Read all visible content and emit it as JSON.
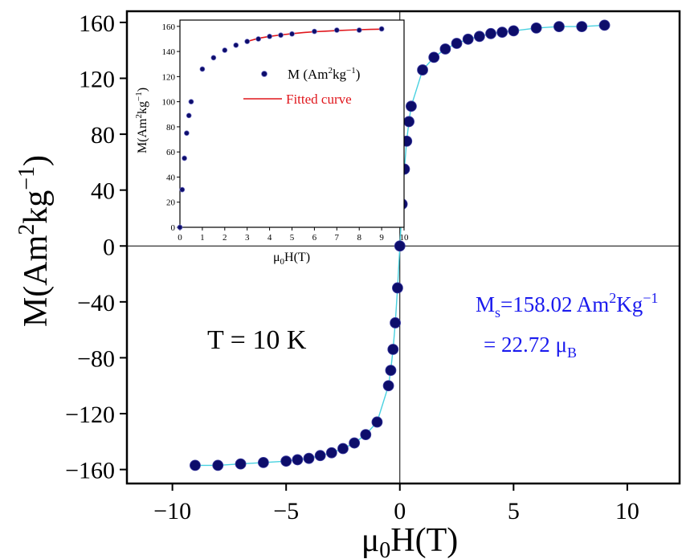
{
  "chart_data": [
    {
      "type": "scatter",
      "title": "",
      "xlabel_base": "μ",
      "xlabel_sub": "0",
      "xlabel_rest": "H(T)",
      "ylabel_main": "M(Am",
      "ylabel_sup1": "2",
      "ylabel_mid": "kg",
      "ylabel_sup2": "−1",
      "ylabel_end": ")",
      "xlim": [
        -12,
        12.3
      ],
      "ylim": [
        -170,
        168
      ],
      "xticks": [
        -10,
        -5,
        0,
        5,
        10
      ],
      "xtick_labels": [
        "−10",
        "−5",
        "0",
        "5",
        "10"
      ],
      "yticks": [
        -160,
        -120,
        -80,
        -40,
        0,
        40,
        80,
        120,
        160
      ],
      "ytick_labels": [
        "−160",
        "−120",
        "−80",
        "−40",
        "0",
        "40",
        "80",
        "120",
        "160"
      ],
      "marker_color": "#0d0d6b",
      "line_color": "#48d1e0",
      "series": [
        {
          "name": "",
          "x": [
            -9,
            -8,
            -7,
            -6,
            -5,
            -4.5,
            -4,
            -3.5,
            -3,
            -2.5,
            -2,
            -1.5,
            -1,
            -0.5,
            -0.4,
            -0.3,
            -0.2,
            -0.1,
            0,
            0.1,
            0.2,
            0.3,
            0.4,
            0.5,
            1,
            1.5,
            2,
            2.5,
            3,
            3.5,
            4,
            4.5,
            5,
            6,
            7,
            8,
            9
          ],
          "y": [
            -157,
            -157,
            -156,
            -155,
            -154,
            -153,
            -152,
            -150,
            -148,
            -145,
            -141,
            -135,
            -126,
            -100,
            -89,
            -74,
            -55,
            -30,
            0,
            30,
            55,
            75,
            89,
            100,
            126,
            135,
            141,
            145,
            148,
            150,
            152,
            153,
            154,
            156,
            157,
            157,
            158
          ]
        }
      ],
      "annotations": {
        "temperature": "T = 10 K",
        "ms_prefix": "M",
        "ms_sub": "s",
        "ms_value": "=158.02 Am",
        "ms_sup1": "2",
        "ms_unit": "Kg",
        "ms_sup2": "−1",
        "mu_line_prefix": "= 22.72 μ",
        "mu_line_sub": "B"
      }
    },
    {
      "type": "scatter",
      "title": "",
      "xlabel_base": "μ",
      "xlabel_sub": "0",
      "xlabel_rest": "H(T)",
      "ylabel_main": "M(Am",
      "ylabel_sup1": "2",
      "ylabel_mid": "kg",
      "ylabel_sup2": "−1",
      "ylabel_end": ")",
      "xlim": [
        0,
        10
      ],
      "ylim": [
        0,
        165
      ],
      "xticks": [
        0,
        1,
        2,
        3,
        4,
        5,
        6,
        7,
        8,
        9,
        10
      ],
      "xtick_labels": [
        "0",
        "1",
        "2",
        "3",
        "4",
        "5",
        "6",
        "7",
        "8",
        "9",
        "10"
      ],
      "yticks": [
        0,
        20,
        40,
        60,
        80,
        100,
        120,
        140,
        160
      ],
      "ytick_labels": [
        "0",
        "20",
        "40",
        "60",
        "80",
        "100",
        "120",
        "140",
        "160"
      ],
      "legend_position": "center-right",
      "series": [
        {
          "name": "M (Am²kg⁻¹)",
          "legend_base": "M (Am",
          "legend_sup1": "2",
          "legend_mid": "kg",
          "legend_sup2": "−1",
          "legend_end": ")",
          "color": "#0d0d6b",
          "x": [
            0,
            0.1,
            0.2,
            0.3,
            0.4,
            0.5,
            1,
            1.5,
            2,
            2.5,
            3,
            3.5,
            4,
            4.5,
            5,
            6,
            7,
            8,
            9
          ],
          "y": [
            0,
            30,
            55,
            75,
            89,
            100,
            126,
            135,
            141,
            145,
            148,
            150,
            152,
            153,
            154,
            156,
            157,
            157,
            158
          ]
        },
        {
          "name": "Fitted curve",
          "color": "#e0161c",
          "x": [
            3,
            3.5,
            4,
            4.5,
            5,
            5.5,
            6,
            6.5,
            7,
            7.5,
            8,
            8.5,
            9
          ],
          "y": [
            148,
            150.5,
            152,
            153.2,
            154.2,
            155,
            155.7,
            156.2,
            156.6,
            157,
            157.3,
            157.6,
            157.8
          ]
        }
      ]
    }
  ]
}
